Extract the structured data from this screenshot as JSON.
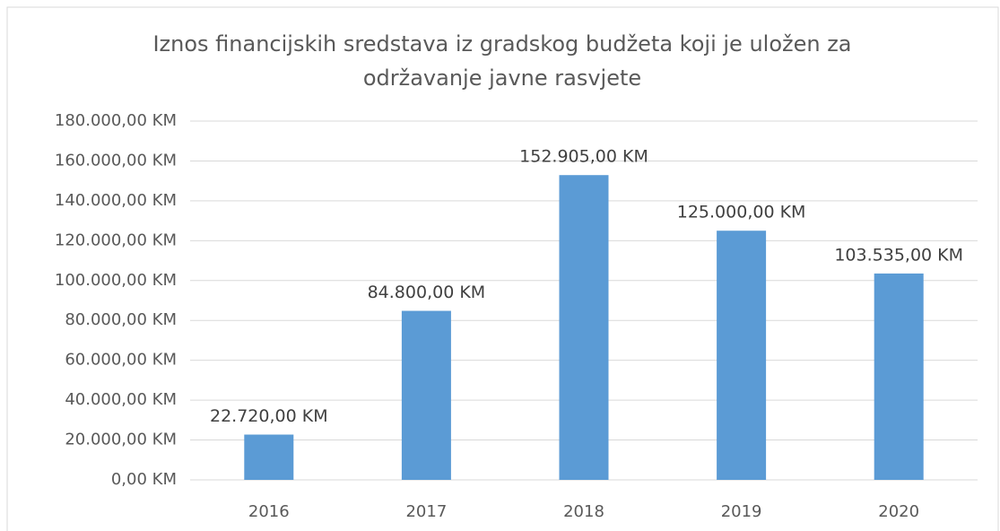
{
  "chart_data": {
    "type": "bar",
    "title": "Iznos financijskih sredstava iz gradskog budžeta koji je uložen za održavanje javne rasvjete",
    "categories": [
      "2016",
      "2017",
      "2018",
      "2019",
      "2020"
    ],
    "values": [
      22720,
      84800,
      152905,
      125000,
      103535
    ],
    "value_labels": [
      "22.720,00 KM",
      "84.800,00 KM",
      "152.905,00 KM",
      "125.000,00 KM",
      "103.535,00 KM"
    ],
    "color": "#5b9bd5",
    "ylim": [
      0,
      180000
    ],
    "yticks": [
      {
        "value": 0,
        "label": "0,00 KM"
      },
      {
        "value": 20000,
        "label": "20.000,00 KM"
      },
      {
        "value": 40000,
        "label": "40.000,00 KM"
      },
      {
        "value": 60000,
        "label": "60.000,00 KM"
      },
      {
        "value": 80000,
        "label": "80.000,00 KM"
      },
      {
        "value": 100000,
        "label": "100.000,00 KM"
      },
      {
        "value": 120000,
        "label": "120.000,00 KM"
      },
      {
        "value": 140000,
        "label": "140.000,00 KM"
      },
      {
        "value": 160000,
        "label": "160.000,00 KM"
      },
      {
        "value": 180000,
        "label": "180.000,00 KM"
      }
    ],
    "grid": true
  }
}
